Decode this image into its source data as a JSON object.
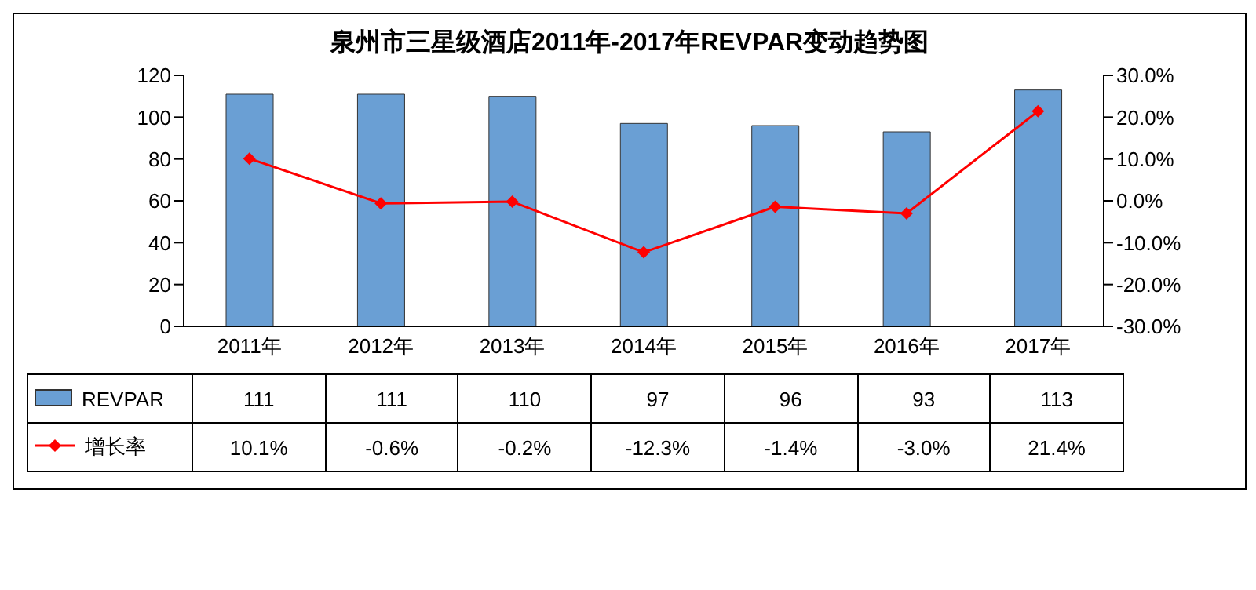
{
  "chart_data": {
    "type": "bar",
    "title": "泉州市三星级酒店2011年-2017年REVPAR变动趋势图",
    "categories": [
      "2011年",
      "2012年",
      "2013年",
      "2014年",
      "2015年",
      "2016年",
      "2017年"
    ],
    "series": [
      {
        "name": "REVPAR",
        "color": "#6a9fd4",
        "values": [
          111,
          111,
          110,
          97,
          96,
          93,
          113
        ],
        "value_labels": [
          "111",
          "111",
          "110",
          "97",
          "96",
          "93",
          "113"
        ]
      },
      {
        "name": "增长率",
        "type": "line",
        "axis": "y2",
        "color": "#ff0000",
        "marker": "diamond",
        "values": [
          10.1,
          -0.6,
          -0.2,
          -12.3,
          -1.4,
          -3.0,
          21.4
        ],
        "value_labels": [
          "10.1%",
          "-0.6%",
          "-0.2%",
          "-12.3%",
          "-1.4%",
          "-3.0%",
          "21.4%"
        ]
      }
    ],
    "ylim": [
      0,
      120
    ],
    "yticks": [
      0,
      20,
      40,
      60,
      80,
      100,
      120
    ],
    "y2lim": [
      -30,
      30
    ],
    "y2ticks": [
      {
        "value": -30,
        "label": "-30.0%"
      },
      {
        "value": -20,
        "label": "-20.0%"
      },
      {
        "value": -10,
        "label": "-10.0%"
      },
      {
        "value": 0,
        "label": "0.0%"
      },
      {
        "value": 10,
        "label": "10.0%"
      },
      {
        "value": 20,
        "label": "20.0%"
      },
      {
        "value": 30,
        "label": "30.0%"
      }
    ],
    "legend": "bottom"
  }
}
